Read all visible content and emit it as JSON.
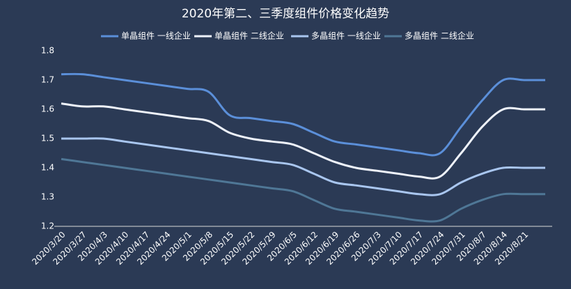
{
  "chart_data": {
    "type": "line",
    "title": "2020年第二、三季度组件价格变化趋势",
    "categories": [
      "2020/3/20",
      "2020/3/27",
      "2020/4/3",
      "2020/4/10",
      "2020/4/17",
      "2020/4/24",
      "2020/5/1",
      "2020/5/8",
      "2020/5/15",
      "2020/5/22",
      "2020/5/29",
      "2020/6/5",
      "2020/6/12",
      "2020/6/19",
      "2020/6/26",
      "2020/7/3",
      "2020/7/10",
      "2020/7/17",
      "2020/7/24",
      "2020/7/31",
      "2020/8/7",
      "2020/8/14",
      "2020/8/21",
      null
    ],
    "series": [
      {
        "name": "单晶组件 一线企业",
        "color": "#5b8fd9",
        "values": [
          1.72,
          1.72,
          1.71,
          1.7,
          1.69,
          1.68,
          1.67,
          1.66,
          1.58,
          1.57,
          1.56,
          1.55,
          1.52,
          1.49,
          1.48,
          1.47,
          1.46,
          1.45,
          1.45,
          1.54,
          1.63,
          1.7,
          1.7,
          1.7
        ]
      },
      {
        "name": "单晶组件 二线企业",
        "color": "#eef2fa",
        "values": [
          1.62,
          1.61,
          1.61,
          1.6,
          1.59,
          1.58,
          1.57,
          1.56,
          1.52,
          1.5,
          1.49,
          1.48,
          1.45,
          1.42,
          1.4,
          1.39,
          1.38,
          1.37,
          1.37,
          1.45,
          1.54,
          1.6,
          1.6,
          1.6
        ]
      },
      {
        "name": "多晶组件 一线企业",
        "color": "#a9c6ef",
        "values": [
          1.5,
          1.5,
          1.5,
          1.49,
          1.48,
          1.47,
          1.46,
          1.45,
          1.44,
          1.43,
          1.42,
          1.41,
          1.38,
          1.35,
          1.34,
          1.33,
          1.32,
          1.31,
          1.31,
          1.35,
          1.38,
          1.4,
          1.4,
          1.4
        ]
      },
      {
        "name": "多晶组件 二线企业",
        "color": "#4f7796",
        "values": [
          1.43,
          1.42,
          1.41,
          1.4,
          1.39,
          1.38,
          1.37,
          1.36,
          1.35,
          1.34,
          1.33,
          1.32,
          1.29,
          1.26,
          1.25,
          1.24,
          1.23,
          1.22,
          1.22,
          1.26,
          1.29,
          1.31,
          1.31,
          1.31
        ]
      }
    ],
    "ylim": [
      1.2,
      1.8
    ],
    "yticks": [
      1.2,
      1.3,
      1.4,
      1.5,
      1.6,
      1.7,
      1.8
    ],
    "grid": false
  }
}
